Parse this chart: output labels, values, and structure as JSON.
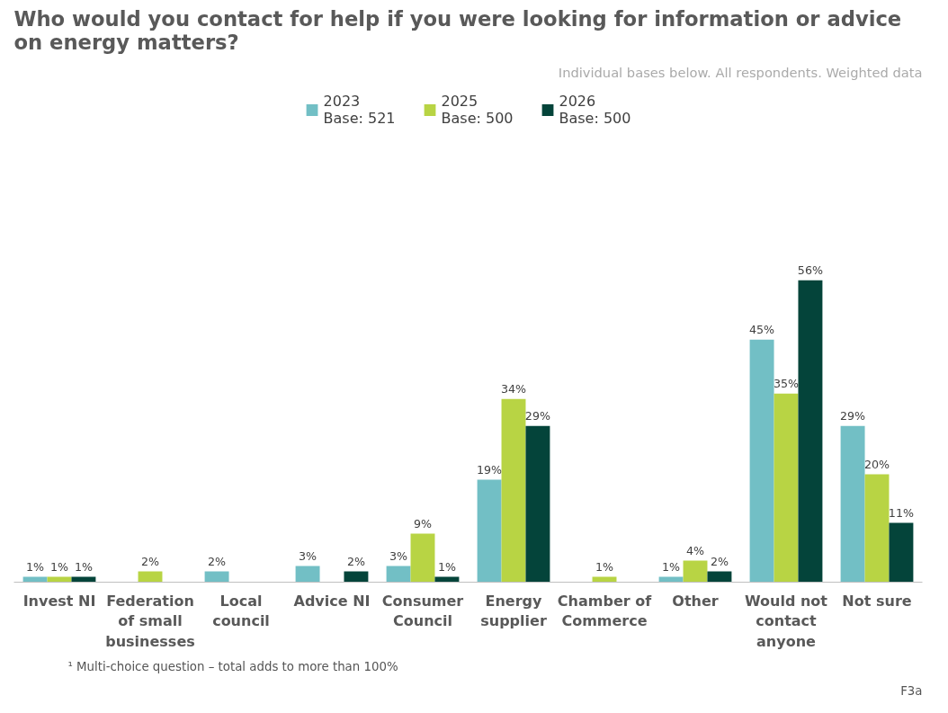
{
  "chart_data": {
    "type": "bar",
    "title": "Who would you contact for help if you were looking for information or advice on energy matters?",
    "categories": [
      "Invest NI",
      "Federation of small businesses",
      "Local council",
      "Advice NI",
      "Consumer Council",
      "Energy supplier",
      "Chamber of Commerce",
      "Other",
      "Would not contact anyone",
      "Not sure"
    ],
    "series": [
      {
        "name": "2023\nBase: 521",
        "color": "#72bfc5",
        "values": [
          1,
          null,
          2,
          3,
          3,
          19,
          null,
          1,
          45,
          29
        ],
        "value_labels": [
          "1%",
          null,
          "2%",
          "3%",
          "3%",
          "19%",
          null,
          "1%",
          "45%",
          "29%"
        ]
      },
      {
        "name": "2025\nBase: 500",
        "color": "#b8d444",
        "values": [
          1,
          2,
          null,
          null,
          9,
          34,
          1,
          4,
          35,
          20
        ],
        "value_labels": [
          "1%",
          "2%",
          null,
          null,
          "9%",
          "34%",
          "1%",
          "4%",
          "35%",
          "20%"
        ]
      },
      {
        "name": "2026\nBase: 500",
        "color": "#04443a",
        "values": [
          1,
          null,
          null,
          2,
          1,
          29,
          null,
          2,
          56,
          11
        ],
        "value_labels": [
          "1%",
          null,
          null,
          "2%",
          "1%",
          "29%",
          null,
          "2%",
          "56%",
          "11%"
        ]
      }
    ],
    "legend": "top",
    "annotations": [
      "Individual bases below. All respondents. Weighted data",
      "¹ Multi-choice question – total adds to more than 100%",
      "F3a"
    ]
  }
}
